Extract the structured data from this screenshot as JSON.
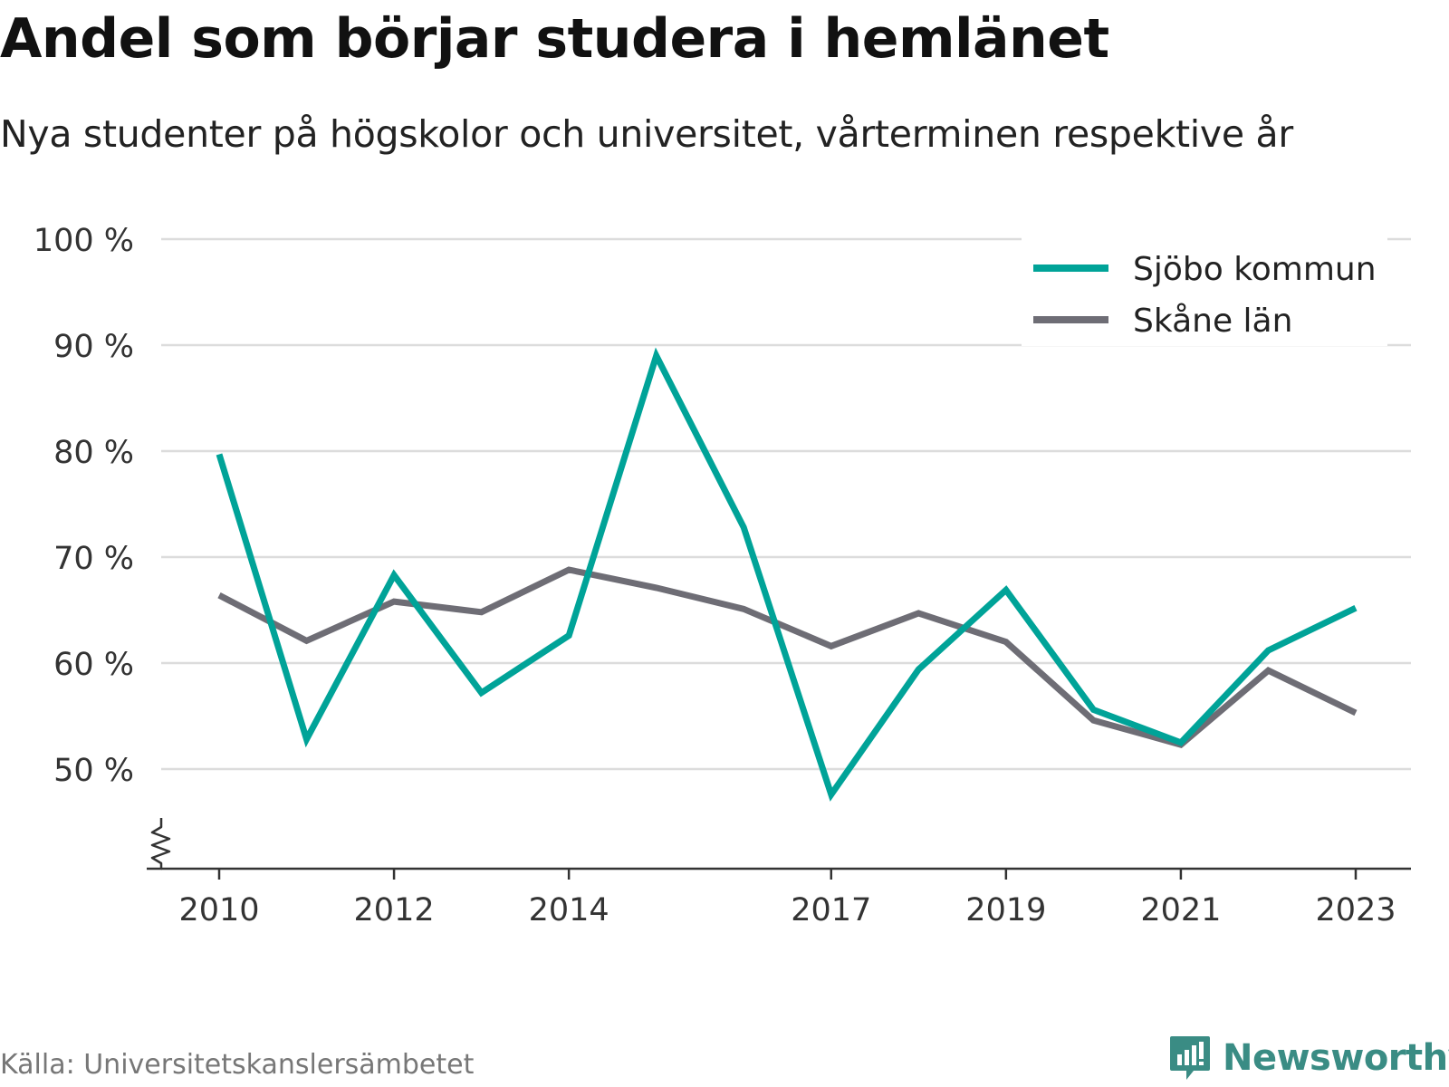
{
  "title": "Andel som börjar studera i hemlänet",
  "subtitle": "Nya studenter på högskolor och universitet, vårterminen respektive år",
  "source": "Källa: Universitetskanslersämbetet",
  "logo": {
    "text": "Newsworthy",
    "icon": "newsworthy-logo-icon",
    "color": "#3a8c84"
  },
  "chart_data": {
    "type": "line",
    "x": [
      2010,
      2011,
      2012,
      2013,
      2014,
      2015,
      2016,
      2017,
      2018,
      2019,
      2020,
      2021,
      2022,
      2023
    ],
    "x_tick_labels": [
      "2010",
      "2012",
      "2014",
      "2017",
      "2019",
      "2021",
      "2023"
    ],
    "y_tick_labels": [
      "100 %",
      "90 %",
      "80 %",
      "70 %",
      "60 %",
      "50 %"
    ],
    "ylim": [
      40,
      100
    ],
    "y_axis_break": true,
    "grid": true,
    "legend_position": "top-right",
    "series": [
      {
        "name": "Sjöbo kommun",
        "color": "#00a398",
        "values": [
          79.7,
          52.8,
          68.3,
          57.2,
          62.6,
          89.0,
          72.8,
          47.6,
          59.4,
          66.9,
          55.6,
          52.5,
          61.2,
          65.2
        ]
      },
      {
        "name": "Skåne län",
        "color": "#6e6d75",
        "values": [
          66.4,
          62.1,
          65.8,
          64.8,
          68.8,
          67.1,
          65.1,
          61.6,
          64.7,
          62.0,
          54.6,
          52.3,
          59.3,
          55.3
        ]
      }
    ]
  }
}
